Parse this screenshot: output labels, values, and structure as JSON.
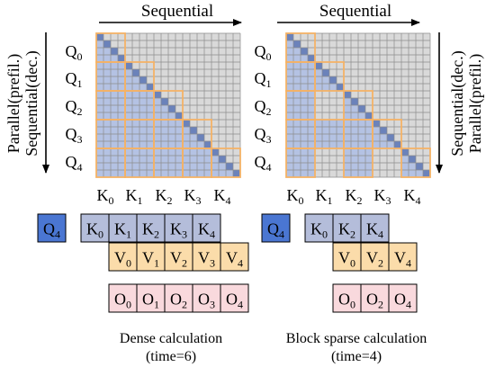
{
  "top_label_left": "Sequential",
  "top_label_right": "Sequential",
  "side_label_left": {
    "line1": "Parallel(prefil.)",
    "line2": "Sequential(dec.)"
  },
  "side_label_right": {
    "line1": "Sequential(dec.)",
    "line2": "Parallel(prefil.)"
  },
  "q_labels": [
    "Q0",
    "Q1",
    "Q2",
    "Q3",
    "Q4"
  ],
  "k_labels": [
    "K0",
    "K1",
    "K2",
    "K3",
    "K4"
  ],
  "dense": {
    "query": "Q4",
    "keys": [
      "K0",
      "K1",
      "K2",
      "K3",
      "K4"
    ],
    "values": [
      "V0",
      "V1",
      "V2",
      "V3",
      "V4"
    ],
    "outputs": [
      "O0",
      "O1",
      "O2",
      "O3",
      "O4"
    ],
    "caption_line1": "Dense calculation",
    "caption_line2": "(time=6)"
  },
  "sparse": {
    "query": "Q4",
    "keys": [
      "K0",
      "K2",
      "K4"
    ],
    "values": [
      "V0",
      "V2",
      "V4"
    ],
    "outputs": [
      "O0",
      "O2",
      "O4"
    ],
    "caption_line1": "Block sparse calculation",
    "caption_line2": "(time=4)"
  },
  "sparse_active_blocks": [
    [
      0,
      0
    ],
    [
      1,
      0
    ],
    [
      1,
      1
    ],
    [
      2,
      0
    ],
    [
      2,
      2
    ],
    [
      3,
      0
    ],
    [
      3,
      1
    ],
    [
      3,
      2
    ],
    [
      3,
      3
    ],
    [
      4,
      0
    ],
    [
      4,
      2
    ],
    [
      4,
      4
    ]
  ],
  "colors": {
    "grid_bg": "#d9d9d9",
    "grid_line": "#8c8c8c",
    "active": "#b4c2e3",
    "diagonal": "#6b82ba",
    "block_border": "#f4b266",
    "query_box": "#4a76d2",
    "key_box": "#b4bdda",
    "value_box": "#fbdcaa",
    "output_box": "#f9d9dd"
  }
}
